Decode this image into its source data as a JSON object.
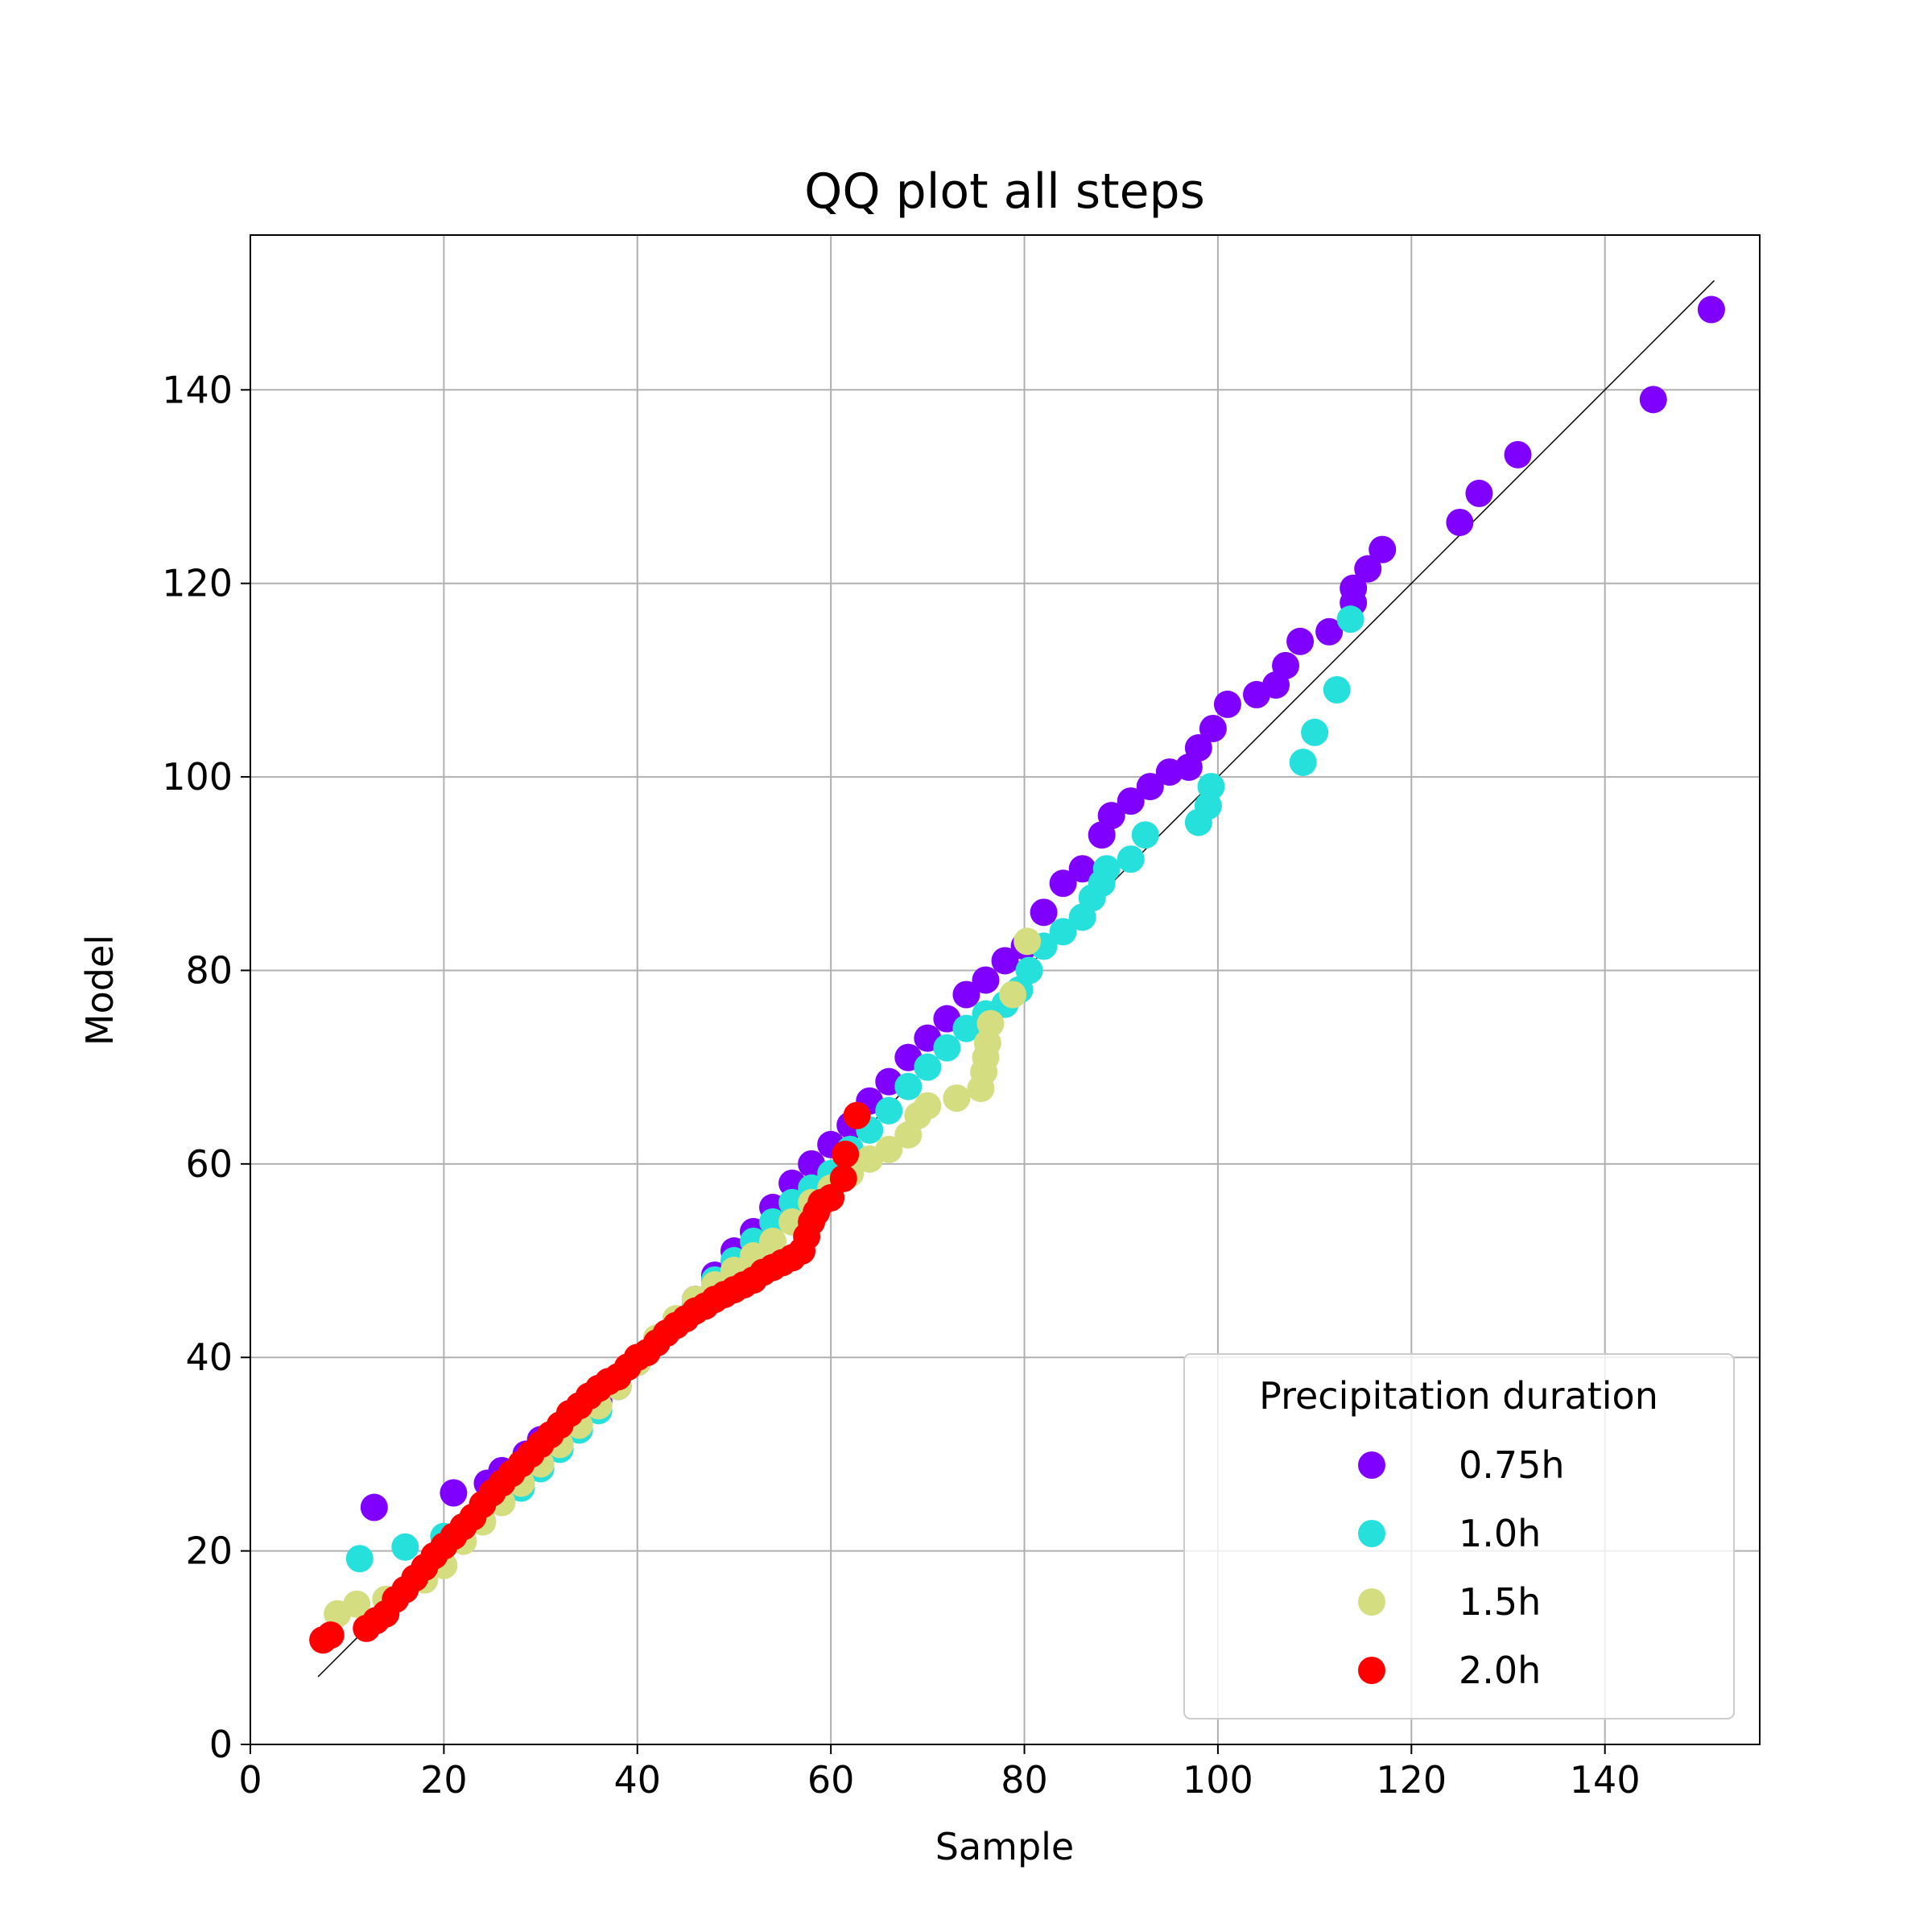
{
  "chart_data": {
    "type": "scatter",
    "title": "QQ plot all steps",
    "xlabel": "Sample",
    "ylabel": "Model",
    "xlim": [
      0,
      156
    ],
    "ylim": [
      0,
      156
    ],
    "xticks": [
      0,
      20,
      40,
      60,
      80,
      100,
      120,
      140
    ],
    "yticks": [
      0,
      20,
      40,
      60,
      80,
      100,
      120,
      140
    ],
    "grid": true,
    "reference_line": {
      "from": [
        7,
        7
      ],
      "to": [
        151.3,
        151.3
      ],
      "color": "#000000"
    },
    "legend": {
      "title": "Precipitation duration",
      "placement": "bottom-right"
    },
    "series": [
      {
        "name": "0.75h",
        "color": "#8000ff",
        "points": [
          [
            12.8,
            24.5
          ],
          [
            21,
            26
          ],
          [
            24.5,
            27
          ],
          [
            26,
            28.3
          ],
          [
            28.5,
            30
          ],
          [
            30,
            31.5
          ],
          [
            32,
            32.5
          ],
          [
            34,
            34
          ],
          [
            36,
            35.5
          ],
          [
            38,
            37
          ],
          [
            40,
            39.5
          ],
          [
            42,
            41.5
          ],
          [
            44,
            43.5
          ],
          [
            46,
            46
          ],
          [
            48,
            48.5
          ],
          [
            50,
            51
          ],
          [
            52,
            53
          ],
          [
            54,
            55.5
          ],
          [
            56,
            58
          ],
          [
            58,
            60
          ],
          [
            60,
            62
          ],
          [
            62,
            64
          ],
          [
            64,
            66.5
          ],
          [
            66,
            68.5
          ],
          [
            68,
            71
          ],
          [
            70,
            73
          ],
          [
            72,
            75
          ],
          [
            74,
            77.5
          ],
          [
            76,
            79
          ],
          [
            78,
            81
          ],
          [
            80,
            82.5
          ],
          [
            82,
            86
          ],
          [
            84,
            89
          ],
          [
            86,
            90.5
          ],
          [
            88,
            94
          ],
          [
            89,
            96
          ],
          [
            91,
            97.5
          ],
          [
            93,
            99
          ],
          [
            95,
            100.5
          ],
          [
            97,
            101
          ],
          [
            98,
            103
          ],
          [
            99.5,
            105
          ],
          [
            101,
            107.5
          ],
          [
            104,
            108.5
          ],
          [
            106,
            109.5
          ],
          [
            107,
            111.5
          ],
          [
            108.5,
            114
          ],
          [
            111.5,
            115
          ],
          [
            114,
            118
          ],
          [
            114,
            119.5
          ],
          [
            115.5,
            121.5
          ],
          [
            117,
            123.5
          ],
          [
            125,
            126.3
          ],
          [
            127,
            129.3
          ],
          [
            131,
            133.3
          ],
          [
            145,
            139
          ],
          [
            151,
            148.3
          ]
        ]
      },
      {
        "name": "1.0h",
        "color": "#26e0dc",
        "points": [
          [
            11.3,
            19.2
          ],
          [
            16,
            20.4
          ],
          [
            20,
            21.5
          ],
          [
            22,
            22.5
          ],
          [
            24,
            24.5
          ],
          [
            26,
            25.5
          ],
          [
            28,
            26.5
          ],
          [
            30,
            28.5
          ],
          [
            32,
            30.5
          ],
          [
            34,
            32.5
          ],
          [
            36,
            34.5
          ],
          [
            38,
            37
          ],
          [
            40,
            39.5
          ],
          [
            42,
            41.5
          ],
          [
            44,
            43.5
          ],
          [
            46,
            45.5
          ],
          [
            48,
            48
          ],
          [
            50,
            50
          ],
          [
            52,
            52
          ],
          [
            54,
            54
          ],
          [
            56,
            56
          ],
          [
            58,
            57.5
          ],
          [
            60,
            59
          ],
          [
            62,
            61.5
          ],
          [
            64,
            63.5
          ],
          [
            66,
            65.5
          ],
          [
            68,
            68
          ],
          [
            70,
            70
          ],
          [
            72,
            72
          ],
          [
            74,
            74
          ],
          [
            76,
            75.5
          ],
          [
            78,
            76.5
          ],
          [
            79.5,
            78
          ],
          [
            80.5,
            80
          ],
          [
            82,
            82.5
          ],
          [
            84,
            84
          ],
          [
            86,
            85.5
          ],
          [
            87,
            87.5
          ],
          [
            88,
            89
          ],
          [
            88.5,
            90.5
          ],
          [
            91,
            91.5
          ],
          [
            92.5,
            94
          ],
          [
            98,
            95.3
          ],
          [
            99,
            97
          ],
          [
            99.3,
            99
          ],
          [
            108.8,
            101.5
          ],
          [
            110,
            104.6
          ],
          [
            112.3,
            109
          ],
          [
            113.7,
            116.3
          ]
        ]
      },
      {
        "name": "1.5h",
        "color": "#d4dd80",
        "points": [
          [
            9,
            13.5
          ],
          [
            11,
            14.5
          ],
          [
            14,
            15
          ],
          [
            16,
            16
          ],
          [
            18,
            17
          ],
          [
            20,
            18.5
          ],
          [
            22,
            21
          ],
          [
            24,
            23
          ],
          [
            26,
            25
          ],
          [
            28,
            27
          ],
          [
            30,
            29
          ],
          [
            32,
            31
          ],
          [
            34,
            33
          ],
          [
            36,
            35
          ],
          [
            38,
            37
          ],
          [
            40,
            39.5
          ],
          [
            42,
            42
          ],
          [
            44,
            44
          ],
          [
            46,
            46
          ],
          [
            48,
            47.5
          ],
          [
            50,
            49
          ],
          [
            52,
            50.5
          ],
          [
            54,
            52
          ],
          [
            56,
            54
          ],
          [
            58,
            56
          ],
          [
            60,
            57.5
          ],
          [
            62,
            59
          ],
          [
            64,
            60.5
          ],
          [
            66,
            61.5
          ],
          [
            68,
            63
          ],
          [
            69,
            65
          ],
          [
            70,
            66
          ],
          [
            73,
            66.8
          ],
          [
            75.5,
            67.8
          ],
          [
            75.8,
            69.5
          ],
          [
            76,
            71
          ],
          [
            76.2,
            72.5
          ],
          [
            76.5,
            74.5
          ],
          [
            78.8,
            77.5
          ],
          [
            80.3,
            83
          ]
        ]
      },
      {
        "name": "2.0h",
        "color": "#ff0000",
        "points": [
          [
            7.5,
            10.8
          ],
          [
            8.3,
            11.3
          ],
          [
            12,
            12
          ],
          [
            13,
            12.8
          ],
          [
            14,
            13.5
          ],
          [
            15,
            15
          ],
          [
            16,
            16
          ],
          [
            17,
            17.2
          ],
          [
            18,
            18.3
          ],
          [
            19,
            19.5
          ],
          [
            20,
            20.5
          ],
          [
            21,
            21.5
          ],
          [
            22,
            22.5
          ],
          [
            23,
            23.5
          ],
          [
            24,
            24.8
          ],
          [
            25,
            26
          ],
          [
            26,
            27
          ],
          [
            27,
            28
          ],
          [
            28,
            29
          ],
          [
            29,
            30
          ],
          [
            30,
            31
          ],
          [
            31,
            32
          ],
          [
            32,
            33
          ],
          [
            33,
            34.2
          ],
          [
            34,
            35
          ],
          [
            35,
            36
          ],
          [
            36,
            36.8
          ],
          [
            37,
            37.5
          ],
          [
            38,
            38
          ],
          [
            39,
            39
          ],
          [
            40,
            40
          ],
          [
            41,
            40.5
          ],
          [
            42,
            41.5
          ],
          [
            43,
            42.5
          ],
          [
            44,
            43.3
          ],
          [
            45,
            44
          ],
          [
            46,
            44.8
          ],
          [
            47,
            45.3
          ],
          [
            48,
            46
          ],
          [
            49,
            46.5
          ],
          [
            50,
            47
          ],
          [
            51,
            47.5
          ],
          [
            52,
            48
          ],
          [
            53,
            48.8
          ],
          [
            54,
            49.3
          ],
          [
            55,
            49.8
          ],
          [
            56,
            50.3
          ],
          [
            57,
            51
          ],
          [
            57.5,
            52.5
          ],
          [
            58,
            54
          ],
          [
            58.5,
            55
          ],
          [
            59,
            56
          ],
          [
            60,
            56.5
          ],
          [
            61.3,
            58.5
          ],
          [
            61.5,
            61
          ],
          [
            62.7,
            65
          ]
        ]
      }
    ]
  }
}
